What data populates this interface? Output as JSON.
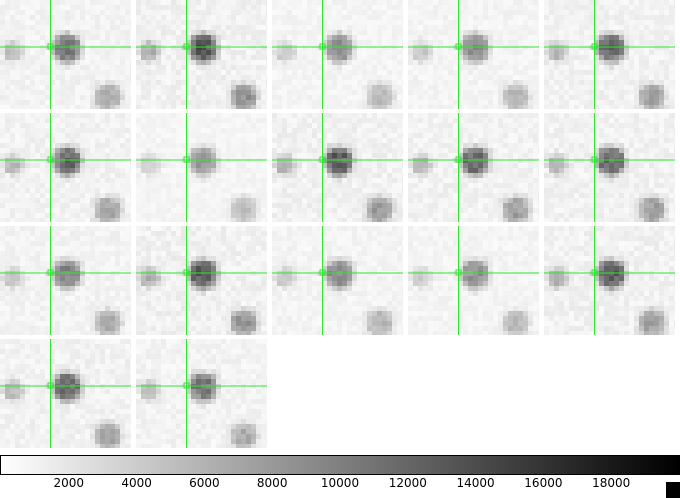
{
  "panel_count": 17,
  "panels": [
    {
      "index": 1,
      "brightness": 0.55
    },
    {
      "index": 2,
      "brightness": 0.7
    },
    {
      "index": 3,
      "brightness": 0.45
    },
    {
      "index": 4,
      "brightness": 0.48
    },
    {
      "index": 5,
      "brightness": 0.62
    },
    {
      "index": 6,
      "brightness": 0.6
    },
    {
      "index": 7,
      "brightness": 0.4
    },
    {
      "index": 8,
      "brightness": 0.68
    },
    {
      "index": 9,
      "brightness": 0.62
    },
    {
      "index": 10,
      "brightness": 0.64
    },
    {
      "index": 11,
      "brightness": 0.52
    },
    {
      "index": 12,
      "brightness": 0.7
    },
    {
      "index": 13,
      "brightness": 0.48
    },
    {
      "index": 14,
      "brightness": 0.45
    },
    {
      "index": 15,
      "brightness": 0.66
    },
    {
      "index": 16,
      "brightness": 0.62
    },
    {
      "index": 17,
      "brightness": 0.55
    }
  ],
  "crosshair_color": "#2ee62e",
  "colorbar": {
    "gradient_from": "#ffffff",
    "gradient_to": "#000000",
    "ticks": [
      "2000",
      "4000",
      "6000",
      "8000",
      "10000",
      "12000",
      "14000",
      "16000",
      "18000"
    ],
    "tick_values": [
      2000,
      4000,
      6000,
      8000,
      10000,
      12000,
      14000,
      16000,
      18000
    ],
    "range": [
      0,
      20000
    ]
  }
}
